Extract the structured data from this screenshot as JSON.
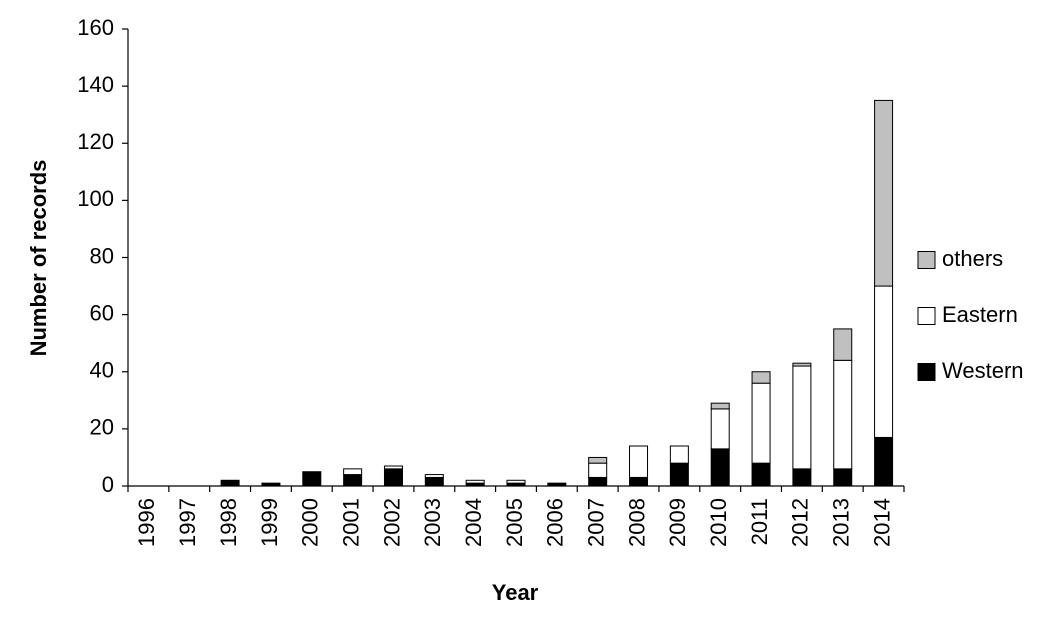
{
  "chart_data": {
    "type": "bar",
    "stacked": true,
    "title": "",
    "xlabel": "Year",
    "ylabel": "Number of records",
    "ylim": [
      0,
      160
    ],
    "yticks": [
      0,
      20,
      40,
      60,
      80,
      100,
      120,
      140,
      160
    ],
    "grid": false,
    "legend_position": "right",
    "categories": [
      "1996",
      "1997",
      "1998",
      "1999",
      "2000",
      "2001",
      "2002",
      "2003",
      "2004",
      "2005",
      "2006",
      "2007",
      "2008",
      "2009",
      "2010",
      "2011",
      "2012",
      "2013",
      "2014"
    ],
    "series": [
      {
        "name": "Western",
        "color": "#000000",
        "values": [
          0,
          0,
          2,
          1,
          5,
          4,
          6,
          3,
          1,
          1,
          1,
          3,
          3,
          8,
          13,
          8,
          6,
          6,
          17
        ]
      },
      {
        "name": "Eastern",
        "color": "#ffffff",
        "values": [
          0,
          0,
          0,
          0,
          0,
          2,
          1,
          1,
          1,
          1,
          0,
          5,
          11,
          6,
          14,
          28,
          36,
          38,
          53
        ]
      },
      {
        "name": "others",
        "color": "#c0c0c0",
        "values": [
          0,
          0,
          0,
          0,
          0,
          0,
          0,
          0,
          0,
          0,
          0,
          2,
          0,
          0,
          2,
          4,
          1,
          11,
          65
        ]
      }
    ],
    "legend_order": [
      "others",
      "Eastern",
      "Western"
    ]
  }
}
